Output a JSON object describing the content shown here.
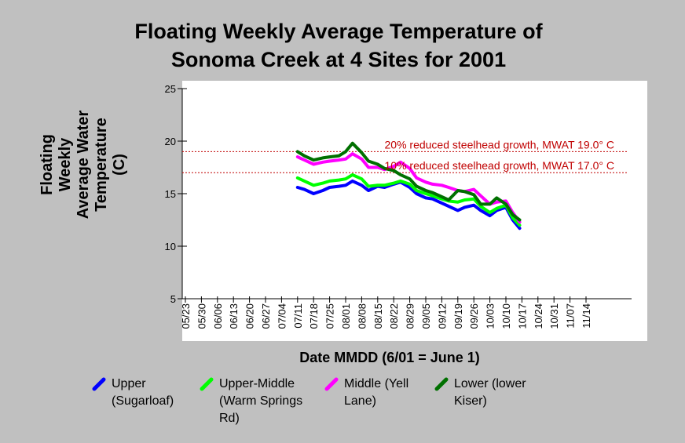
{
  "chart_data": {
    "type": "line",
    "title_lines": [
      "Floating Weekly Average Temperature of",
      "Sonoma Creek at 4 Sites for 2001"
    ],
    "ylabel_lines": [
      "Floating",
      "Weekly",
      "Average Water",
      "Temperature",
      "(C)"
    ],
    "xlabel": "Date MMDD (6/01 = June 1)",
    "ylim": [
      5,
      25
    ],
    "yticks": [
      "5",
      "10",
      "15",
      "20",
      "25"
    ],
    "xticks": [
      "05/23",
      "05/30",
      "06/06",
      "06/13",
      "06/20",
      "06/27",
      "07/04",
      "07/11",
      "07/18",
      "07/25",
      "08/01",
      "08/08",
      "08/15",
      "08/22",
      "08/29",
      "09/05",
      "09/12",
      "09/19",
      "09/26",
      "10/03",
      "10/10",
      "10/17",
      "10/24",
      "10/31",
      "11/07",
      "11/14"
    ],
    "x_unit": "days since 05/23 (tick spacing = 7 days)",
    "grid": false,
    "legend_position": "bottom",
    "reference_lines": [
      {
        "y": 19.0,
        "label": "20% reduced steelhead growth, MWAT 19.0° C",
        "color": "#c00000"
      },
      {
        "y": 17.0,
        "label": "10% reduced steelhead growth, MWAT 17.0° C",
        "color": "#c00000"
      }
    ],
    "series": [
      {
        "name": "Upper (Sugarloaf)",
        "legend_lines": [
          "Upper",
          "(Sugarloaf)"
        ],
        "color": "#0000ff",
        "points": [
          [
            49,
            15.6
          ],
          [
            52,
            15.4
          ],
          [
            56,
            15.0
          ],
          [
            60,
            15.3
          ],
          [
            63,
            15.6
          ],
          [
            67,
            15.7
          ],
          [
            70,
            15.8
          ],
          [
            73,
            16.2
          ],
          [
            77,
            15.8
          ],
          [
            80,
            15.3
          ],
          [
            84,
            15.7
          ],
          [
            87,
            15.6
          ],
          [
            91,
            15.9
          ],
          [
            94,
            16.1
          ],
          [
            98,
            15.6
          ],
          [
            101,
            15.0
          ],
          [
            105,
            14.6
          ],
          [
            108,
            14.5
          ],
          [
            112,
            14.1
          ],
          [
            115,
            13.8
          ],
          [
            119,
            13.4
          ],
          [
            122,
            13.7
          ],
          [
            126,
            13.9
          ],
          [
            129,
            13.4
          ],
          [
            133,
            12.9
          ],
          [
            136,
            13.4
          ],
          [
            140,
            13.7
          ],
          [
            143,
            12.5
          ],
          [
            146,
            11.7
          ]
        ]
      },
      {
        "name": "Upper-Middle (Warm Springs Rd)",
        "legend_lines": [
          "Upper-Middle",
          "(Warm Springs",
          "Rd)"
        ],
        "color": "#00ff00",
        "points": [
          [
            49,
            16.5
          ],
          [
            52,
            16.2
          ],
          [
            56,
            15.8
          ],
          [
            60,
            16.0
          ],
          [
            63,
            16.2
          ],
          [
            67,
            16.3
          ],
          [
            70,
            16.4
          ],
          [
            73,
            16.8
          ],
          [
            77,
            16.4
          ],
          [
            80,
            15.7
          ],
          [
            84,
            15.8
          ],
          [
            87,
            15.8
          ],
          [
            91,
            16.0
          ],
          [
            94,
            16.2
          ],
          [
            98,
            15.9
          ],
          [
            101,
            15.3
          ],
          [
            105,
            15.0
          ],
          [
            108,
            14.8
          ],
          [
            112,
            14.5
          ],
          [
            115,
            14.3
          ],
          [
            119,
            14.2
          ],
          [
            122,
            14.4
          ],
          [
            126,
            14.5
          ],
          [
            129,
            13.8
          ],
          [
            133,
            13.2
          ],
          [
            136,
            13.6
          ],
          [
            140,
            13.9
          ],
          [
            143,
            12.7
          ],
          [
            146,
            12.0
          ]
        ]
      },
      {
        "name": "Middle (Yell Lane)",
        "legend_lines": [
          "Middle (Yell",
          "Lane)"
        ],
        "color": "#ff00ff",
        "points": [
          [
            49,
            18.5
          ],
          [
            52,
            18.2
          ],
          [
            56,
            17.8
          ],
          [
            60,
            18.0
          ],
          [
            63,
            18.1
          ],
          [
            67,
            18.2
          ],
          [
            70,
            18.3
          ],
          [
            73,
            18.8
          ],
          [
            77,
            18.3
          ],
          [
            80,
            17.5
          ],
          [
            84,
            17.5
          ],
          [
            87,
            17.3
          ],
          [
            91,
            17.6
          ],
          [
            94,
            18.0
          ],
          [
            98,
            17.4
          ],
          [
            101,
            16.5
          ],
          [
            105,
            16.1
          ],
          [
            108,
            15.9
          ],
          [
            112,
            15.8
          ],
          [
            115,
            15.6
          ],
          [
            119,
            15.3
          ],
          [
            122,
            15.2
          ],
          [
            126,
            15.4
          ],
          [
            129,
            14.8
          ],
          [
            133,
            14.0
          ],
          [
            136,
            14.2
          ],
          [
            140,
            14.3
          ],
          [
            143,
            13.2
          ],
          [
            146,
            12.3
          ]
        ]
      },
      {
        "name": "Lower (lower Kiser)",
        "legend_lines": [
          "Lower (lower",
          "Kiser)"
        ],
        "color": "#007000",
        "points": [
          [
            49,
            19.0
          ],
          [
            52,
            18.6
          ],
          [
            56,
            18.2
          ],
          [
            60,
            18.4
          ],
          [
            63,
            18.5
          ],
          [
            67,
            18.6
          ],
          [
            70,
            19.0
          ],
          [
            73,
            19.8
          ],
          [
            77,
            18.9
          ],
          [
            80,
            18.1
          ],
          [
            84,
            17.8
          ],
          [
            87,
            17.4
          ],
          [
            91,
            17.2
          ],
          [
            94,
            16.8
          ],
          [
            98,
            16.4
          ],
          [
            101,
            15.7
          ],
          [
            105,
            15.3
          ],
          [
            108,
            15.1
          ],
          [
            112,
            14.7
          ],
          [
            115,
            14.4
          ],
          [
            119,
            15.3
          ],
          [
            122,
            15.2
          ],
          [
            126,
            14.9
          ],
          [
            129,
            14.0
          ],
          [
            133,
            14.0
          ],
          [
            136,
            14.6
          ],
          [
            140,
            14.0
          ],
          [
            143,
            13.0
          ],
          [
            146,
            12.5
          ]
        ]
      }
    ]
  }
}
